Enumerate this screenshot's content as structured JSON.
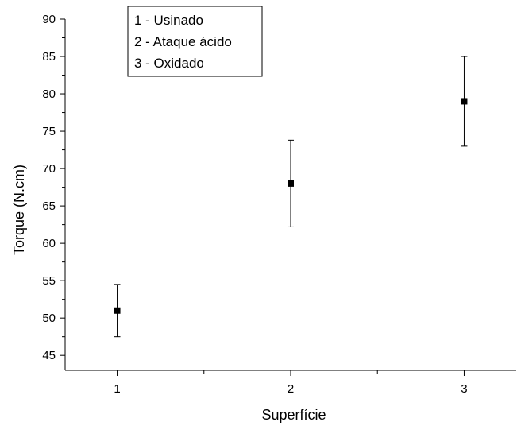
{
  "chart_data": {
    "type": "scatter",
    "title": "",
    "xlabel": "Superfície",
    "ylabel": "Torque (N.cm)",
    "xlim": [
      0.7,
      3.3
    ],
    "ylim": [
      43,
      90
    ],
    "x_ticks": [
      1,
      2,
      3
    ],
    "x_tick_labels": [
      "1",
      "2",
      "3"
    ],
    "y_ticks": [
      45,
      50,
      55,
      60,
      65,
      70,
      75,
      80,
      85,
      90
    ],
    "y_tick_labels": [
      "45",
      "50",
      "55",
      "60",
      "65",
      "70",
      "75",
      "80",
      "85",
      "90"
    ],
    "grid": false,
    "legend_placement": "top-left",
    "legend_entries": [
      "1 - Usinado",
      "2 - Ataque ácido",
      "3 - Oxidado"
    ],
    "marker_color": "#000000",
    "series": [
      {
        "x": [
          1,
          2,
          3
        ],
        "y": [
          51,
          68,
          79
        ],
        "error": [
          3.5,
          5.8,
          6.0
        ]
      }
    ]
  }
}
